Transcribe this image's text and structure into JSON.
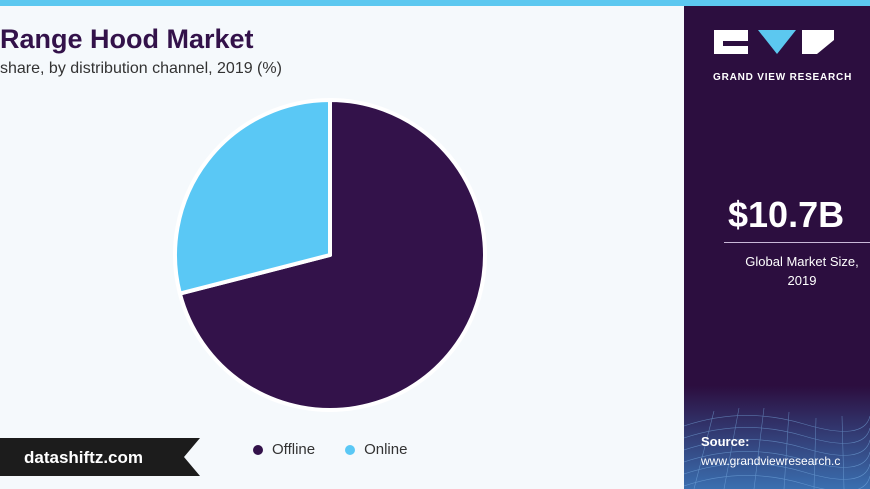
{
  "chart_data": {
    "type": "pie",
    "title": "Range Hood Market",
    "subtitle": "share, by distribution channel, 2019 (%)",
    "categories": [
      "Offline",
      "Online"
    ],
    "values": [
      71,
      29
    ],
    "colors": [
      "#33124a",
      "#5ac8f5"
    ],
    "legend_position": "bottom"
  },
  "brand": {
    "name": "GRAND VIEW RESEARCH"
  },
  "stat": {
    "value": "$10.7B",
    "caption_line1": "Global Market Size,",
    "caption_line2": "2019"
  },
  "source": {
    "label": "Source:",
    "url": "www.grandviewresearch.c"
  },
  "watermark": {
    "text": "datashiftz.com"
  }
}
